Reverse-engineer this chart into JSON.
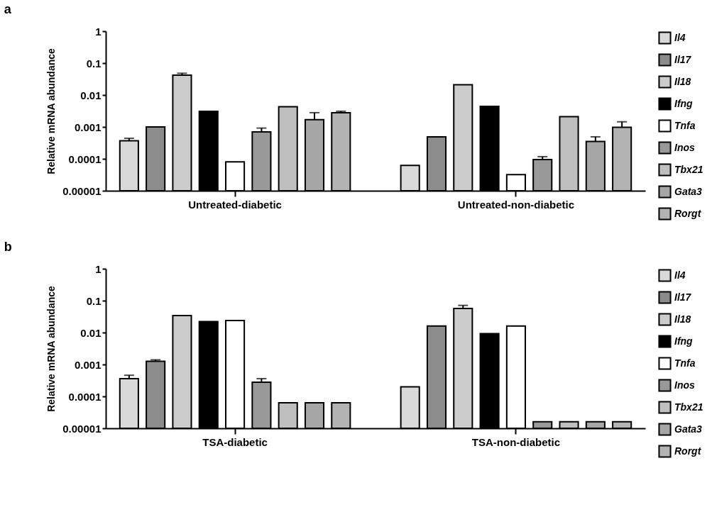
{
  "chart_data": [
    {
      "type": "bar",
      "title": "a",
      "ylabel": "Relative mRNA abundance",
      "categories": [
        "Untreated-diabetic",
        "Untreated-non-diabetic"
      ],
      "log": true,
      "ylim": [
        1e-05,
        1
      ],
      "yticks": [
        {
          "value": 1e-05,
          "label": "0.00001"
        },
        0.0001,
        0.001,
        0.01,
        0.1,
        1
      ],
      "legend": "right",
      "series": [
        {
          "name": "Il4",
          "color": "#d9d9d9",
          "values": [
            0.00037,
            6.2e-05
          ],
          "errors": [
            [
              0.00037,
              0.00044
            ],
            null
          ]
        },
        {
          "name": "Il17",
          "color": "#8c8c8c",
          "values": [
            0.001,
            0.00049
          ],
          "errors": [
            null,
            null
          ]
        },
        {
          "name": "Il18",
          "color": "#cccccc",
          "values": [
            0.042,
            0.021
          ],
          "errors": [
            [
              0.042,
              0.048
            ],
            null
          ]
        },
        {
          "name": "Ifng",
          "color": "#000000",
          "values": [
            0.0031,
            0.0044
          ],
          "errors": [
            null,
            null
          ]
        },
        {
          "name": "Tnfa",
          "color": "#ffffff",
          "values": [
            8e-05,
            3.2e-05
          ],
          "errors": [
            null,
            null
          ]
        },
        {
          "name": "Inos",
          "color": "#999999",
          "values": [
            0.0007,
            9.5e-05
          ],
          "errors": [
            [
              0.0007,
              0.00092
            ],
            [
              9.5e-05,
              0.000117
            ]
          ]
        },
        {
          "name": "Tbx21",
          "color": "#bfbfbf",
          "values": [
            0.0043,
            0.0021
          ],
          "errors": [
            null,
            null
          ]
        },
        {
          "name": "Gata3",
          "color": "#a6a6a6",
          "values": [
            0.0017,
            0.00035
          ],
          "errors": [
            [
              0.0017,
              0.0028
            ],
            [
              0.00035,
              0.00049
            ]
          ]
        },
        {
          "name": "Rorgt",
          "color": "#b3b3b3",
          "values": [
            0.0028,
            0.00098
          ],
          "errors": [
            [
              0.0028,
              0.0031
            ],
            [
              0.00098,
              0.00145
            ]
          ]
        }
      ]
    },
    {
      "type": "bar",
      "title": "b",
      "ylabel": "Relative mRNA abundance",
      "categories": [
        "TSA-diabetic",
        "TSA-non-diabetic"
      ],
      "log": true,
      "ylim": [
        1e-05,
        1
      ],
      "yticks": [
        {
          "value": 1e-05,
          "label": "0.00001"
        },
        0.0001,
        0.001,
        0.01,
        0.1,
        1
      ],
      "legend": "right",
      "series": [
        {
          "name": "Il4",
          "color": "#d9d9d9",
          "values": [
            0.00036,
            0.0002
          ],
          "errors": [
            [
              0.00036,
              0.00046
            ],
            null
          ]
        },
        {
          "name": "Il17",
          "color": "#8c8c8c",
          "values": [
            0.00126,
            0.016
          ],
          "errors": [
            [
              0.00126,
              0.0014
            ],
            null
          ]
        },
        {
          "name": "Il18",
          "color": "#cccccc",
          "values": [
            0.034,
            0.057
          ],
          "errors": [
            null,
            [
              0.057,
              0.071
            ]
          ]
        },
        {
          "name": "Ifng",
          "color": "#000000",
          "values": [
            0.022,
            0.0093
          ],
          "errors": [
            null,
            null
          ]
        },
        {
          "name": "Tnfa",
          "color": "#ffffff",
          "values": [
            0.024,
            0.016
          ],
          "errors": [
            null,
            null
          ]
        },
        {
          "name": "Inos",
          "color": "#999999",
          "values": [
            0.00028,
            1.6e-05
          ],
          "errors": [
            [
              0.00028,
              0.00036
            ],
            null
          ]
        },
        {
          "name": "Tbx21",
          "color": "#bfbfbf",
          "values": [
            6.3e-05,
            1.6e-05
          ],
          "errors": [
            null,
            null
          ]
        },
        {
          "name": "Gata3",
          "color": "#a6a6a6",
          "values": [
            6.3e-05,
            1.6e-05
          ],
          "errors": [
            null,
            null
          ]
        },
        {
          "name": "Rorgt",
          "color": "#b3b3b3",
          "values": [
            6.3e-05,
            1.6e-05
          ],
          "errors": [
            null,
            null
          ]
        }
      ]
    }
  ]
}
